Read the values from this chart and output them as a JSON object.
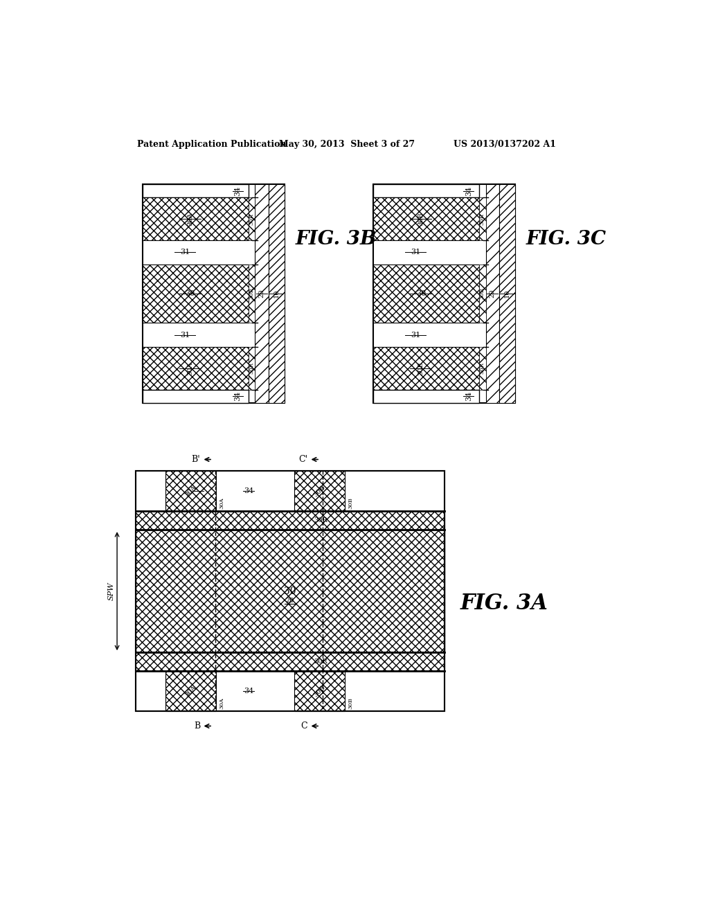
{
  "header_left": "Patent Application Publication",
  "header_mid": "May 30, 2013  Sheet 3 of 27",
  "header_right": "US 2013/0137202 A1",
  "bg_color": "#ffffff",
  "fig3A_label": "FIG. 3A",
  "fig3B_label": "FIG. 3B",
  "fig3C_label": "FIG. 3C"
}
